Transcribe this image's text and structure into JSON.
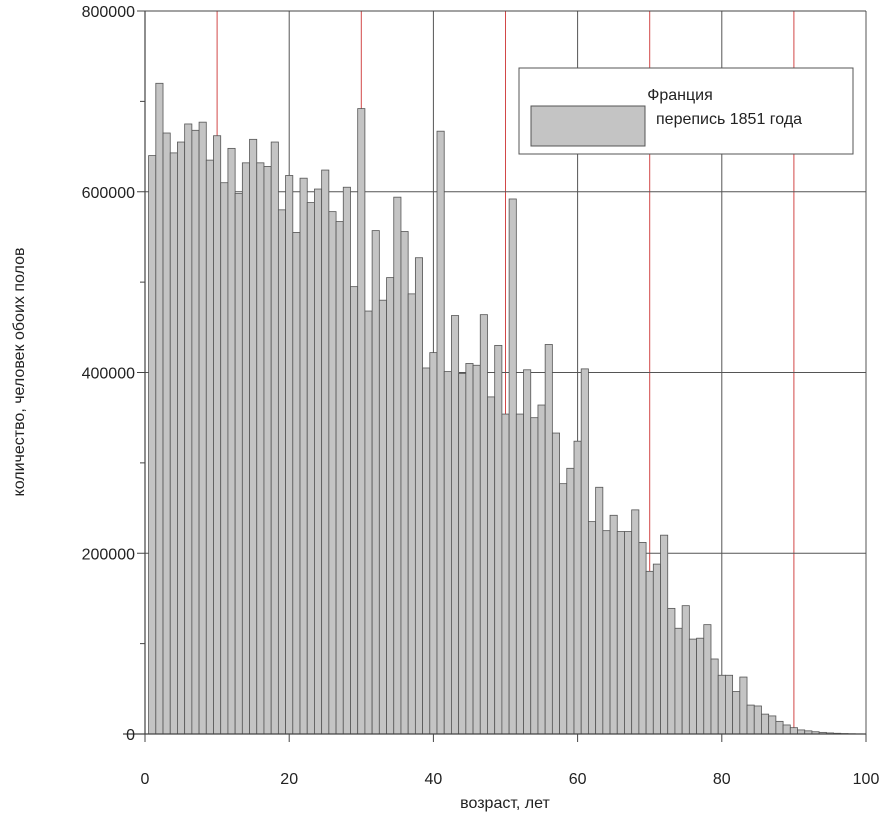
{
  "chart_data": {
    "type": "bar",
    "title": "",
    "xlabel": "возраст, лет",
    "ylabel": "количество, человек обоих полов",
    "xlim": [
      0,
      100
    ],
    "ylim": [
      0,
      800000
    ],
    "xticks": [
      0,
      20,
      40,
      60,
      80,
      100
    ],
    "yticks": [
      0,
      200000,
      400000,
      600000,
      800000
    ],
    "xtick_labels": [
      "0",
      "20",
      "40",
      "60",
      "80",
      "100"
    ],
    "ytick_labels": [
      "0",
      "200000",
      "400000",
      "600000",
      "800000"
    ],
    "grid": true,
    "legend_position": "top-right",
    "legend": {
      "title": "Франция",
      "entry": "перепись 1851 года"
    },
    "colors": {
      "bar_fill": "#c4c4c4",
      "bar_stroke": "#555555",
      "grid_major": "#555555",
      "grid_minor": "#d24848",
      "axis": "#444444"
    },
    "series": [
      {
        "ages": [
          0,
          1,
          2,
          3,
          4,
          5,
          6,
          7,
          8,
          9,
          10,
          11,
          12,
          13,
          14,
          15,
          16,
          17,
          18,
          19,
          20,
          21,
          22,
          23,
          24,
          25,
          26,
          27,
          28,
          29,
          30,
          31,
          32,
          33,
          34,
          35,
          36,
          37,
          38,
          39,
          40,
          41,
          42,
          43,
          44,
          45,
          46,
          47,
          48,
          49,
          50,
          51,
          52,
          53,
          54,
          55,
          56,
          57,
          58,
          59,
          60,
          61,
          62,
          63,
          64,
          65,
          66,
          67,
          68,
          69,
          70,
          71,
          72,
          73,
          74,
          75,
          76,
          77,
          78,
          79,
          80,
          81,
          82,
          83,
          84,
          85,
          86,
          87,
          88,
          89,
          90,
          91,
          92,
          93,
          94,
          95,
          96,
          97,
          98
        ],
        "values": [
          640000,
          720000,
          665000,
          643000,
          655000,
          675000,
          668000,
          677000,
          635000,
          662000,
          610000,
          648000,
          598000,
          632000,
          658000,
          632000,
          628000,
          655000,
          580000,
          618000,
          555000,
          615000,
          588000,
          603000,
          624000,
          578000,
          567000,
          605000,
          495000,
          692000,
          468000,
          557000,
          480000,
          505000,
          594000,
          556000,
          487000,
          527000,
          405000,
          422000,
          667000,
          401000,
          463000,
          399000,
          410000,
          408000,
          464000,
          373000,
          430000,
          354000,
          592000,
          354000,
          403000,
          350000,
          364000,
          431000,
          333000,
          277000,
          294000,
          324000,
          404000,
          235000,
          273000,
          225000,
          242000,
          224000,
          224000,
          248000,
          212000,
          180000,
          188000,
          220000,
          139000,
          117000,
          142000,
          105000,
          106000,
          121000,
          83000,
          65000,
          65000,
          47000,
          63000,
          32000,
          31000,
          22000,
          20000,
          14000,
          10000,
          7000,
          4500,
          3500,
          2500,
          1800,
          1200,
          800,
          500,
          300,
          150
        ]
      }
    ]
  }
}
